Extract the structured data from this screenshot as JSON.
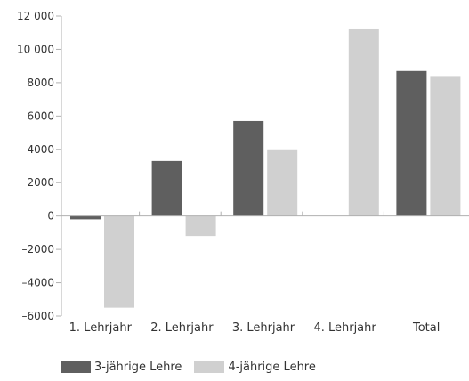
{
  "chart_data": {
    "type": "bar",
    "categories": [
      "1. Lehrjahr",
      "2. Lehrjahr",
      "3. Lehrjahr",
      "4. Lehrjahr",
      "Total"
    ],
    "series": [
      {
        "name": "3-jährige Lehre",
        "color": "#5f5f5f",
        "values": [
          -200,
          3300,
          5700,
          0,
          8700
        ]
      },
      {
        "name": "4-jährige Lehre",
        "color": "#d0d0d0",
        "values": [
          -5500,
          -1200,
          4000,
          11200,
          8400
        ]
      }
    ],
    "y_ticks": [
      "12 000",
      "10 000",
      "8000",
      "6000",
      "4000",
      "2000",
      "0",
      "–2000",
      "–4000",
      "–6000"
    ],
    "y_tick_values": [
      12000,
      10000,
      8000,
      6000,
      4000,
      2000,
      0,
      -2000,
      -4000,
      -6000
    ],
    "ylim": [
      -6000,
      12000
    ],
    "legend_position": "bottom-left",
    "grid": false
  }
}
